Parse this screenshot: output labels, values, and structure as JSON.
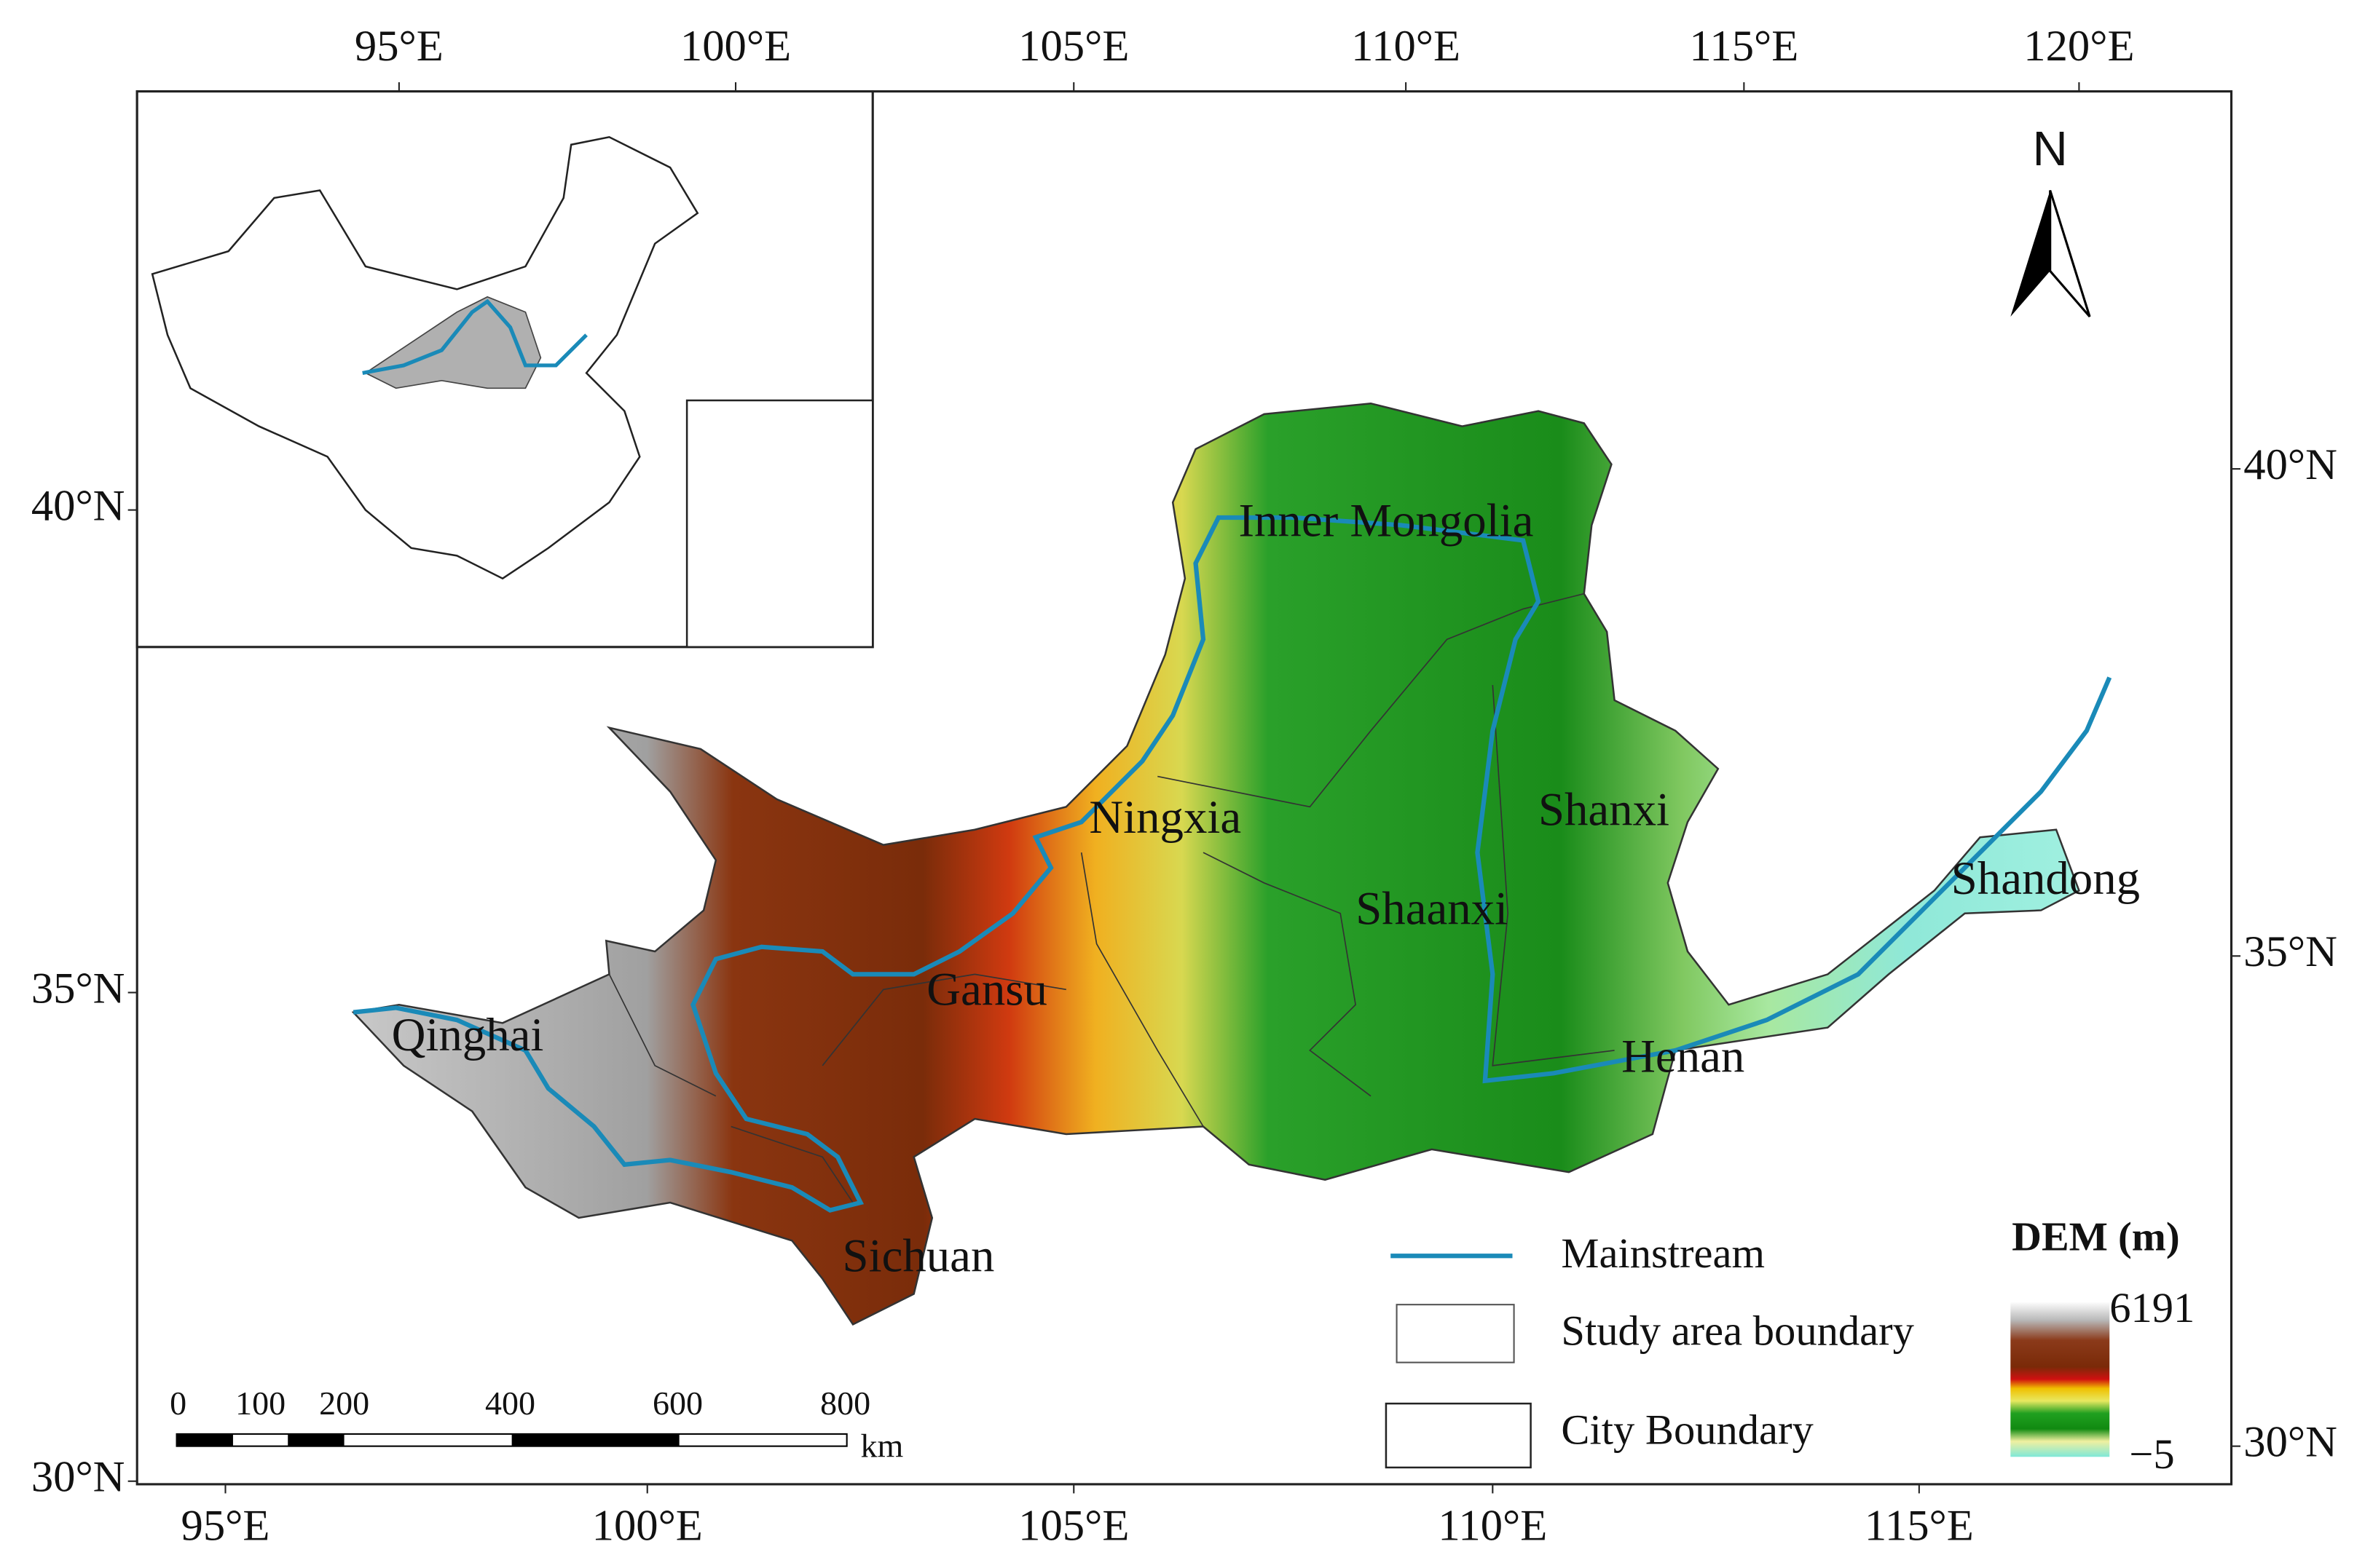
{
  "map": {
    "north": "N",
    "axes": {
      "top": [
        "95°E",
        "100°E",
        "105°E",
        "110°E",
        "115°E",
        "120°E"
      ],
      "bottom": [
        "95°E",
        "100°E",
        "105°E",
        "110°E",
        "115°E"
      ],
      "left": [
        "40°N",
        "35°N",
        "30°N"
      ],
      "right": [
        "40°N",
        "35°N",
        "30°N"
      ]
    },
    "regions": [
      "Inner Mongolia",
      "Ningxia",
      "Shanxi",
      "Shaanxi",
      "Shandong",
      "Gansu",
      "Qinghai",
      "Henan",
      "Sichuan"
    ],
    "legend": {
      "items": [
        "Mainstream",
        "Study area boundary",
        "City Boundary"
      ],
      "dem_title": "DEM (m)",
      "dem_max": "6191",
      "dem_min": "−5"
    },
    "scale_bar": {
      "ticks": [
        "0",
        "100",
        "200",
        "400",
        "600",
        "800"
      ],
      "unit": "km"
    }
  }
}
